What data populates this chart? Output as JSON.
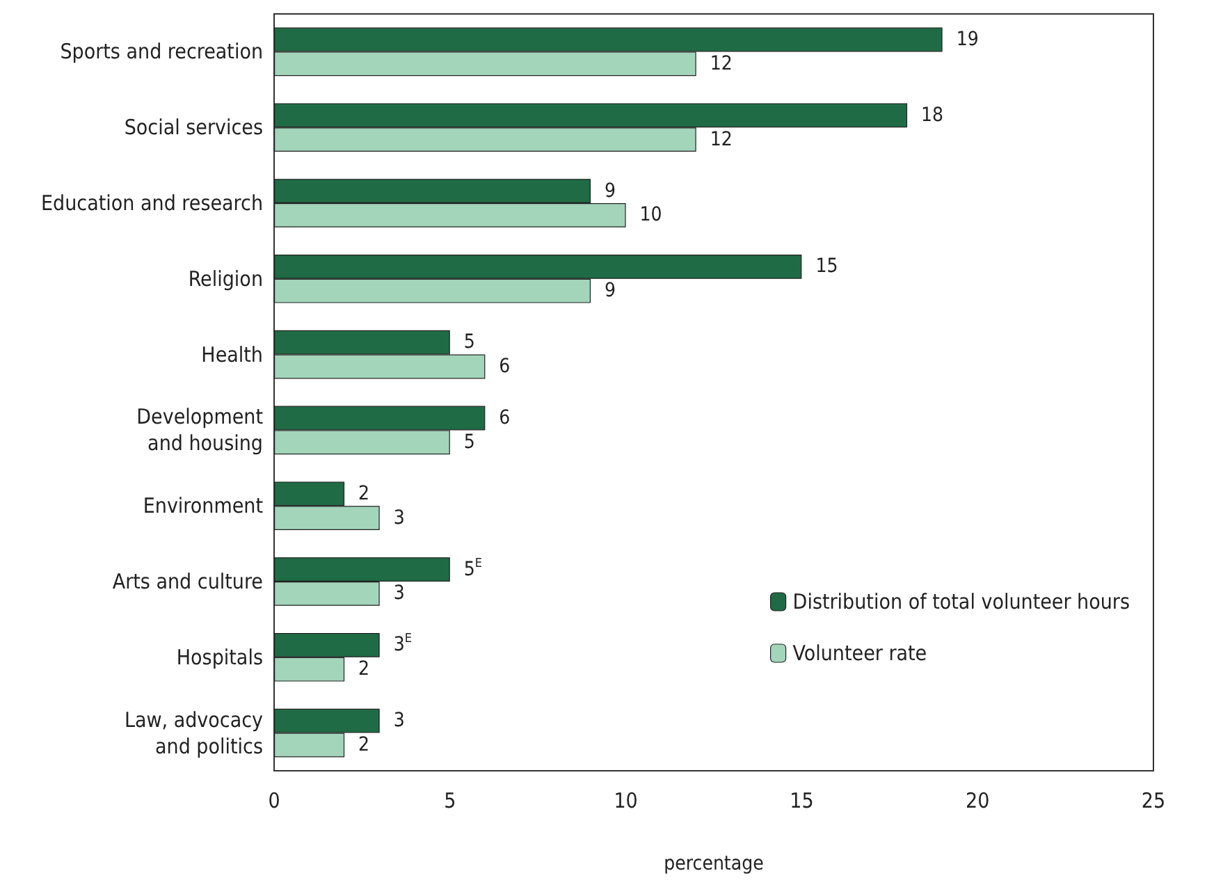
{
  "chart_data": {
    "type": "bar",
    "orientation": "horizontal",
    "xlabel": "percentage",
    "categories": [
      "Sports and recreation",
      "Social services",
      "Education and research",
      "Religion",
      "Health",
      "Development\nand housing",
      "Environment",
      "Arts and culture",
      "Hospitals",
      "Law, advocacy\nand politics"
    ],
    "series": [
      {
        "name": "Distribution of total volunteer hours",
        "color": "#1f6b45",
        "values": [
          19,
          18,
          9,
          15,
          5,
          6,
          2,
          5,
          3,
          3
        ],
        "value_labels": [
          "19",
          "18",
          "9",
          "15",
          "5",
          "6",
          "2",
          "5$^{E}$",
          "3$^{E}$",
          "3"
        ]
      },
      {
        "name": "Volunteer rate",
        "color": "#a3d5bb",
        "values": [
          12,
          12,
          10,
          9,
          6,
          5,
          3,
          3,
          2,
          2
        ],
        "value_labels": [
          "12",
          "12",
          "10",
          "9",
          "6",
          "5",
          "3",
          "3",
          "2",
          "2"
        ]
      }
    ],
    "xlim": [
      0,
      25
    ],
    "xticks": [
      0,
      5,
      10,
      15,
      20,
      25
    ],
    "grid": false,
    "legend": "right"
  }
}
